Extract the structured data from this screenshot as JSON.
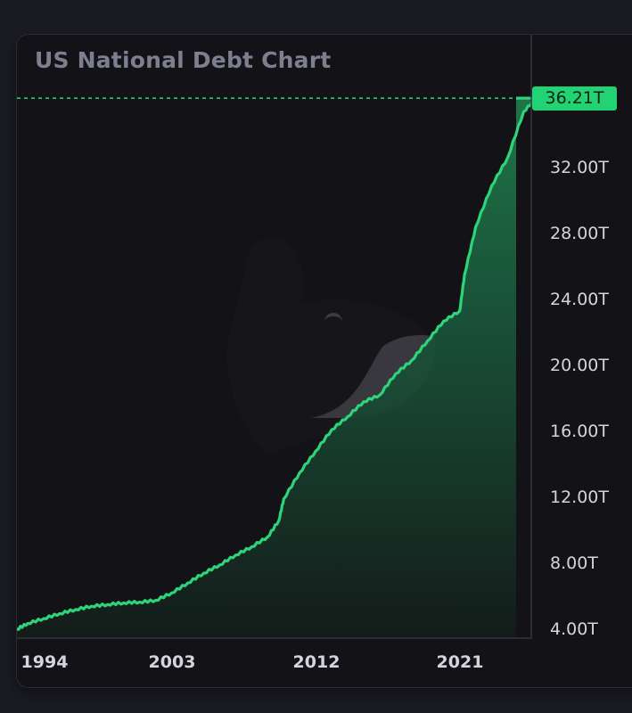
{
  "title": "US National Debt Chart",
  "current_value_label": "36.21T",
  "colors": {
    "background": "#1b1c23",
    "card": "#121217",
    "line": "#2ed47a",
    "tag": "#22d374",
    "axis_text": "#d4d5dc",
    "title_text": "#7d7f8e"
  },
  "y_axis": {
    "ticks": [
      "32.00T",
      "28.00T",
      "24.00T",
      "20.00T",
      "16.00T",
      "12.00T",
      "8.00T",
      "4.00T"
    ]
  },
  "x_axis": {
    "ticks": [
      "1994",
      "2003",
      "2012",
      "2021"
    ]
  },
  "chart_data": {
    "type": "area",
    "title": "US National Debt Chart",
    "xlabel": "",
    "ylabel": "",
    "x": [
      1992,
      1993,
      1994,
      1995,
      1996,
      1997,
      1998,
      1999,
      2000,
      2001,
      2002,
      2003,
      2004,
      2005,
      2006,
      2007,
      2008,
      2008.7,
      2009,
      2010,
      2011,
      2012,
      2013,
      2014,
      2015,
      2016,
      2017,
      2018,
      2019,
      2020,
      2020.3,
      2021,
      2022,
      2023,
      2024,
      2024.8
    ],
    "values": [
      4.0,
      4.35,
      4.65,
      4.95,
      5.2,
      5.4,
      5.5,
      5.6,
      5.65,
      5.75,
      6.2,
      6.8,
      7.4,
      7.9,
      8.5,
      9.0,
      9.6,
      10.6,
      11.9,
      13.5,
      14.8,
      16.1,
      16.9,
      17.8,
      18.2,
      19.5,
      20.3,
      21.5,
      22.7,
      23.3,
      25.5,
      28.4,
      30.9,
      32.6,
      35.4,
      36.21
    ],
    "units": "Trillion USD",
    "last_value": 36.21,
    "last_value_label": "36.21T",
    "y_tick_labels": [
      "4.00T",
      "8.00T",
      "12.00T",
      "16.00T",
      "20.00T",
      "24.00T",
      "28.00T",
      "32.00T"
    ],
    "x_tick_labels": [
      "1994",
      "2003",
      "2012",
      "2021"
    ],
    "ylim": [
      3.0,
      37.5
    ],
    "grid": false,
    "legend": "none",
    "reference_line": {
      "value": 36.21,
      "style": "dashed",
      "color": "#2ed47a"
    }
  }
}
